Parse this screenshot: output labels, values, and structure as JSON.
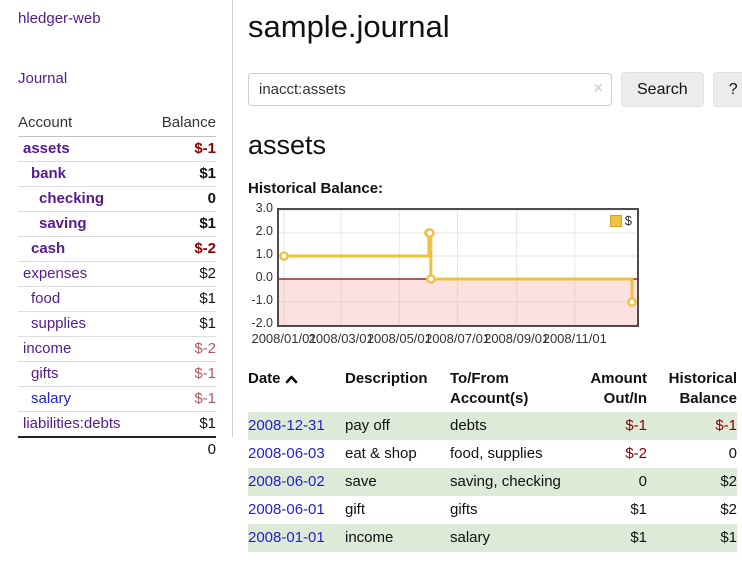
{
  "app": {
    "brand": "hledger-web",
    "nav_journal": "Journal"
  },
  "sidebar": {
    "account_header": "Account",
    "balance_header": "Balance",
    "accounts": [
      {
        "name": "assets",
        "depth": 1,
        "bold": true,
        "link_color": "purple",
        "balance": "$-1",
        "balance_color": "red"
      },
      {
        "name": "bank",
        "depth": 2,
        "bold": true,
        "link_color": "purple",
        "balance": "$1",
        "balance_color": "dark"
      },
      {
        "name": "checking",
        "depth": 3,
        "bold": true,
        "link_color": "purple",
        "balance": "0",
        "balance_color": "dark"
      },
      {
        "name": "saving",
        "depth": 3,
        "bold": true,
        "link_color": "purple",
        "balance": "$1",
        "balance_color": "dark"
      },
      {
        "name": "cash",
        "depth": 2,
        "bold": true,
        "link_color": "purple",
        "balance": "$-2",
        "balance_color": "red"
      },
      {
        "name": "expenses",
        "depth": 1,
        "bold": false,
        "link_color": "purple",
        "balance": "$2",
        "balance_color": "dark"
      },
      {
        "name": "food",
        "depth": 2,
        "bold": false,
        "link_color": "purple",
        "balance": "$1",
        "balance_color": "dark"
      },
      {
        "name": "supplies",
        "depth": 2,
        "bold": false,
        "link_color": "purple",
        "balance": "$1",
        "balance_color": "dark"
      },
      {
        "name": "income",
        "depth": 1,
        "bold": false,
        "link_color": "purple",
        "balance": "$-2",
        "balance_color": "rose"
      },
      {
        "name": "gifts",
        "depth": 2,
        "bold": false,
        "link_color": "purple",
        "balance": "$-1",
        "balance_color": "rose"
      },
      {
        "name": "salary",
        "depth": 2,
        "bold": false,
        "link_color": "blue",
        "balance": "$-1",
        "balance_color": "rose"
      },
      {
        "name": "liabilities:debts",
        "depth": 1,
        "bold": false,
        "link_color": "purple",
        "balance": "$1",
        "balance_color": "dark"
      }
    ],
    "total": "0"
  },
  "main": {
    "title": "sample.journal",
    "search": {
      "value": "inacct:assets",
      "clear_icon": "×",
      "search_button": "Search",
      "help_button": "?"
    },
    "account_heading": "assets",
    "chart_title": "Historical Balance:"
  },
  "chart_data": {
    "type": "line",
    "step": true,
    "title": "Historical Balance:",
    "legend": "$",
    "legend_position": "top-right",
    "line_color": "#edc240",
    "marker": "open-circle",
    "zero_line_color": "#8b0000",
    "negative_fill": "rgba(248,170,170,0.35)",
    "grid_color": "#e6e6e6",
    "ylim": [
      -2,
      3
    ],
    "yticks": [
      "3.0",
      "2.0",
      "1.0",
      "0.0",
      "-1.0",
      "-2.0"
    ],
    "ytick_values": [
      3,
      2,
      1,
      0,
      -1,
      -2
    ],
    "xrange": [
      "2008-01-01",
      "2008-12-31"
    ],
    "xticks": [
      "2008/01/01",
      "2008/03/01",
      "2008/05/01",
      "2008/07/01",
      "2008/09/01",
      "2008/11/01"
    ],
    "series": [
      {
        "name": "$",
        "points": [
          {
            "x": "2008-01-01",
            "y": 1
          },
          {
            "x": "2008-06-01",
            "y": 2
          },
          {
            "x": "2008-06-02",
            "y": 2
          },
          {
            "x": "2008-06-03",
            "y": 0
          },
          {
            "x": "2008-12-31",
            "y": -1
          }
        ]
      }
    ]
  },
  "register": {
    "headers": {
      "date": "Date",
      "description": "Description",
      "accounts": "To/From Account(s)",
      "amount": "Amount Out/In",
      "balance": "Historical Balance"
    },
    "rows": [
      {
        "date": "2008-12-31",
        "description": "pay off",
        "accounts": "debts",
        "amount": "$-1",
        "amount_neg": true,
        "balance": "$-1",
        "balance_neg": true
      },
      {
        "date": "2008-06-03",
        "description": "eat & shop",
        "accounts": "food, supplies",
        "amount": "$-2",
        "amount_neg": true,
        "balance": "0",
        "balance_neg": false
      },
      {
        "date": "2008-06-02",
        "description": "save",
        "accounts": "saving, checking",
        "amount": "0",
        "amount_neg": false,
        "balance": "$2",
        "balance_neg": false
      },
      {
        "date": "2008-06-01",
        "description": "gift",
        "accounts": "gifts",
        "amount": "$1",
        "amount_neg": false,
        "balance": "$2",
        "balance_neg": false
      },
      {
        "date": "2008-01-01",
        "description": "income",
        "accounts": "salary",
        "amount": "$1",
        "amount_neg": false,
        "balance": "$1",
        "balance_neg": false
      }
    ]
  }
}
